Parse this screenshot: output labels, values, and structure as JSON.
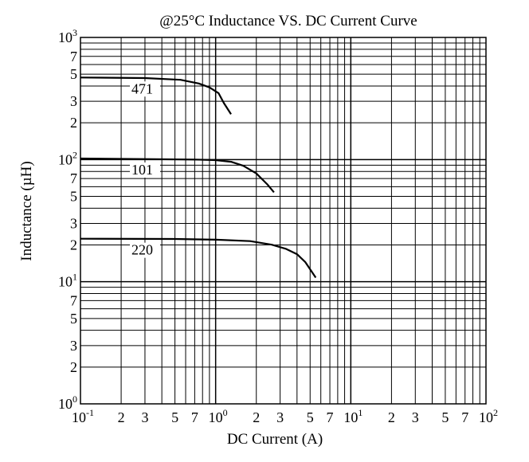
{
  "chart_data": {
    "type": "line",
    "title": "@25°C Inductance VS. DC Current Curve",
    "xlabel": "DC Current (A)",
    "ylabel": "Inductance (µH)",
    "xscale": "log",
    "yscale": "log",
    "xlim": [
      0.1,
      100
    ],
    "ylim": [
      1,
      1000
    ],
    "grid": true,
    "x_ticks": [
      {
        "v": 0.1,
        "base": "10",
        "exp": "-1"
      },
      {
        "v": 0.2,
        "base": "2"
      },
      {
        "v": 0.3,
        "base": "3"
      },
      {
        "v": 0.5,
        "base": "5"
      },
      {
        "v": 0.7,
        "base": "7"
      },
      {
        "v": 1,
        "base": "10",
        "exp": "0"
      },
      {
        "v": 2,
        "base": "2"
      },
      {
        "v": 3,
        "base": "3"
      },
      {
        "v": 5,
        "base": "5"
      },
      {
        "v": 7,
        "base": "7"
      },
      {
        "v": 10,
        "base": "10",
        "exp": "1"
      },
      {
        "v": 20,
        "base": "2"
      },
      {
        "v": 30,
        "base": "3"
      },
      {
        "v": 50,
        "base": "5"
      },
      {
        "v": 70,
        "base": "7"
      },
      {
        "v": 100,
        "base": "10",
        "exp": "2"
      }
    ],
    "y_ticks": [
      {
        "v": 1000,
        "base": "10",
        "exp": "3"
      },
      {
        "v": 700,
        "base": "7"
      },
      {
        "v": 500,
        "base": "5"
      },
      {
        "v": 300,
        "base": "3"
      },
      {
        "v": 200,
        "base": "2"
      },
      {
        "v": 100,
        "base": "10",
        "exp": "2"
      },
      {
        "v": 70,
        "base": "7"
      },
      {
        "v": 50,
        "base": "5"
      },
      {
        "v": 30,
        "base": "3"
      },
      {
        "v": 20,
        "base": "2"
      },
      {
        "v": 10,
        "base": "10",
        "exp": "1"
      },
      {
        "v": 7,
        "base": "7"
      },
      {
        "v": 5,
        "base": "5"
      },
      {
        "v": 3,
        "base": "3"
      },
      {
        "v": 2,
        "base": "2"
      },
      {
        "v": 1,
        "base": "10",
        "exp": "0"
      }
    ],
    "series": [
      {
        "name": "471",
        "x": [
          0.1,
          0.3,
          0.55,
          0.75,
          0.9,
          1.05,
          1.15,
          1.3
        ],
        "y": [
          470,
          465,
          450,
          420,
          390,
          350,
          290,
          235
        ]
      },
      {
        "name": "101",
        "x": [
          0.1,
          0.3,
          0.7,
          1.0,
          1.3,
          1.6,
          2.0,
          2.4,
          2.7
        ],
        "y": [
          102,
          101,
          100,
          99,
          96,
          89,
          77,
          63,
          54
        ]
      },
      {
        "name": "220",
        "x": [
          0.1,
          0.5,
          1.0,
          1.8,
          2.6,
          3.3,
          4.0,
          4.6,
          5.5
        ],
        "y": [
          22.5,
          22.4,
          22.1,
          21.5,
          20.1,
          18.6,
          16.8,
          14.5,
          10.8
        ]
      }
    ]
  }
}
